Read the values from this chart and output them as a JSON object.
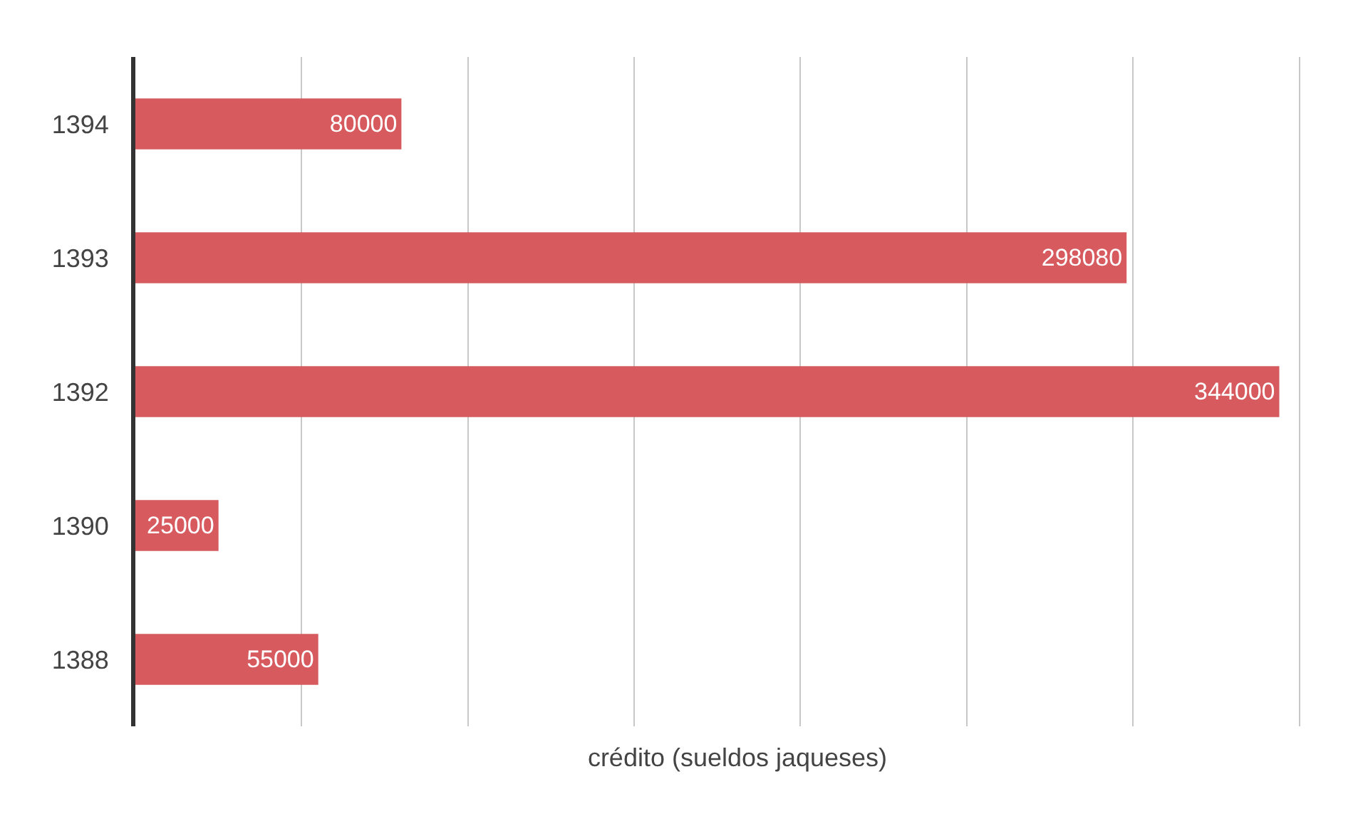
{
  "chart_data": {
    "type": "bar",
    "orientation": "horizontal",
    "xlabel": "crédito (sueldos jaqueses)",
    "categories": [
      "1394",
      "1393",
      "1392",
      "1390",
      "1388"
    ],
    "values": [
      80000,
      298080,
      344000,
      25000,
      55000
    ],
    "color": "#d65a5e",
    "data_labels": true,
    "grid": "x",
    "tick_labels": "y"
  }
}
